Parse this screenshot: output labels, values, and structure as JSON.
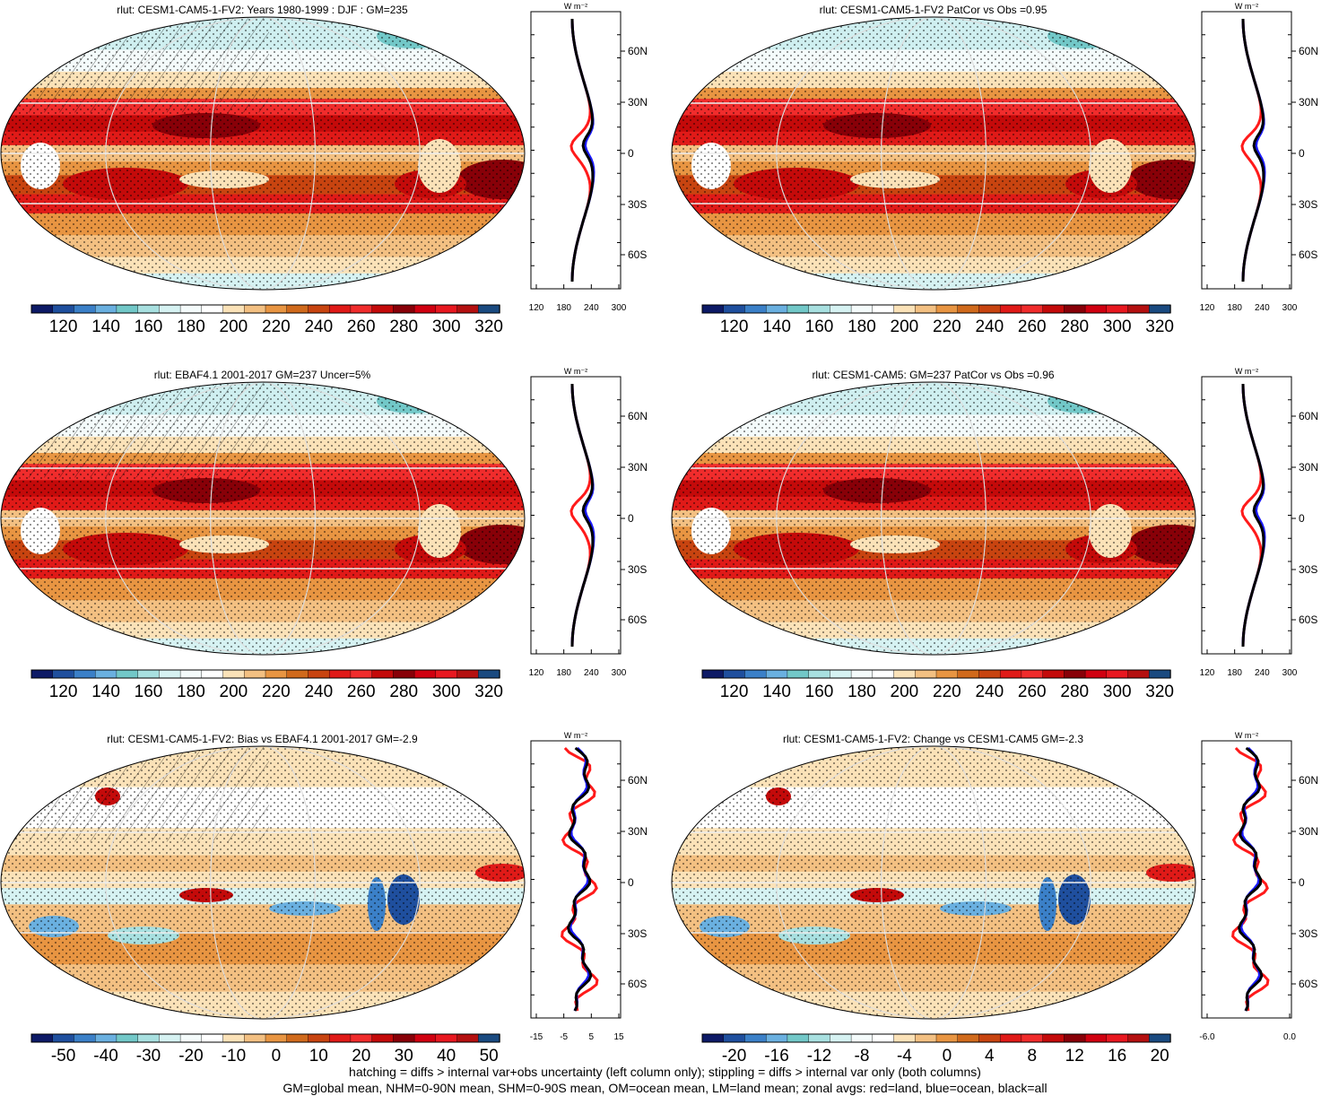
{
  "palette": [
    "#0d1a66",
    "#1f4f9e",
    "#3b80c8",
    "#6ab0e0",
    "#72c8c8",
    "#a8e0e0",
    "#d6f2f2",
    "#f4fbfb",
    "#ffffff",
    "#fbe2b8",
    "#f3c082",
    "#e89542",
    "#d06a1c",
    "#c84410",
    "#e01a18",
    "#f02c2c",
    "#c40a0a",
    "#880008",
    "#d00010",
    "#e81820",
    "#b41010",
    "#1a4a80"
  ],
  "panels": [
    {
      "title": "rlut: CESM1-CAM5-1-FV2: Years 1980-1999 : DJF : GM=235",
      "colorbar_labels": [
        "120",
        "140",
        "160",
        "180",
        "200",
        "220",
        "240",
        "260",
        "280",
        "300",
        "320"
      ],
      "zonal_ticks": [
        "120",
        "180",
        "240",
        "300"
      ],
      "zonal_unit": "W m⁻²",
      "lat_labels": [
        "60N",
        "30N",
        "0",
        "30S",
        "60S"
      ],
      "kind": "abs"
    },
    {
      "title": "rlut: CESM1-CAM5-1-FV2 PatCor vs Obs =0.95",
      "colorbar_labels": [
        "120",
        "140",
        "160",
        "180",
        "200",
        "220",
        "240",
        "260",
        "280",
        "300",
        "320"
      ],
      "zonal_ticks": [
        "120",
        "180",
        "240",
        "300"
      ],
      "zonal_unit": "W m⁻²",
      "lat_labels": [
        "60N",
        "30N",
        "0",
        "30S",
        "60S"
      ],
      "kind": "abs"
    },
    {
      "title": "rlut: EBAF4.1 2001-2017 GM=237 Uncer=5%",
      "colorbar_labels": [
        "120",
        "140",
        "160",
        "180",
        "200",
        "220",
        "240",
        "260",
        "280",
        "300",
        "320"
      ],
      "zonal_ticks": [
        "120",
        "180",
        "240",
        "300"
      ],
      "zonal_unit": "W m⁻²",
      "lat_labels": [
        "60N",
        "30N",
        "0",
        "30S",
        "60S"
      ],
      "kind": "abs"
    },
    {
      "title": "rlut: CESM1-CAM5: GM=237 PatCor vs Obs =0.96",
      "colorbar_labels": [
        "120",
        "140",
        "160",
        "180",
        "200",
        "220",
        "240",
        "260",
        "280",
        "300",
        "320"
      ],
      "zonal_ticks": [
        "120",
        "180",
        "240",
        "300"
      ],
      "zonal_unit": "W m⁻²",
      "lat_labels": [
        "60N",
        "30N",
        "0",
        "30S",
        "60S"
      ],
      "kind": "abs"
    },
    {
      "title": "rlut: CESM1-CAM5-1-FV2: Bias vs EBAF4.1 2001-2017 GM=-2.9",
      "colorbar_labels": [
        "-50",
        "-40",
        "-30",
        "-20",
        "-10",
        "0",
        "10",
        "20",
        "30",
        "40",
        "50"
      ],
      "zonal_ticks": [
        "-15",
        "-5",
        "5",
        "15"
      ],
      "zonal_unit": "W m⁻²",
      "lat_labels": [
        "60N",
        "30N",
        "0",
        "30S",
        "60S"
      ],
      "kind": "diff"
    },
    {
      "title": "rlut: CESM1-CAM5-1-FV2: Change vs CESM1-CAM5 GM=-2.3",
      "colorbar_labels": [
        "-20",
        "-16",
        "-12",
        "-8",
        "-4",
        "0",
        "4",
        "8",
        "12",
        "16",
        "20"
      ],
      "zonal_ticks": [
        "-6.0",
        "0.0"
      ],
      "zonal_unit": "W m⁻²",
      "lat_labels": [
        "60N",
        "30N",
        "0",
        "30S",
        "60S"
      ],
      "kind": "diff"
    }
  ],
  "footer": {
    "line1": "hatching = diffs > internal var+obs uncertainty (left column only); stippling = diffs > internal var only (both columns)",
    "line2": "GM=global mean, NHM=0-90N mean, SHM=0-90S mean, OM=ocean mean, LM=land mean; zonal avgs: red=land, blue=ocean, black=all"
  },
  "colors": {
    "land": "#ff1a1a",
    "ocean": "#1a1aff",
    "all": "#000000"
  }
}
